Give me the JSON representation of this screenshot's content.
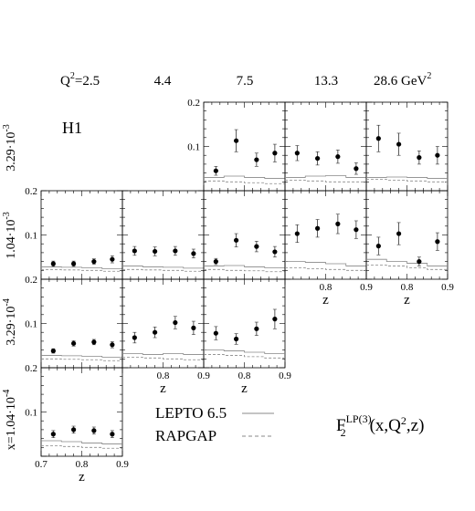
{
  "figure": {
    "experiment_label": "H1",
    "q2_labels": [
      "2.5",
      "4.4",
      "7.5",
      "13.3",
      "28.6"
    ],
    "q2_prefix_base": "Q",
    "q2_prefix_exp": "2",
    "q2_prefix_eq": "=",
    "q2_unit_base": " GeV",
    "q2_unit_exp": "2",
    "x_label_prefix": "x=",
    "x_labels": [
      {
        "mantissa": "3.29·10",
        "exp": "-3"
      },
      {
        "mantissa": "1.04·10",
        "exp": "-3"
      },
      {
        "mantissa": "3.29·10",
        "exp": "-4"
      },
      {
        "mantissa": "1.04·10",
        "exp": "-4"
      }
    ],
    "z_axis_label": "z",
    "z_tick_labels": [
      "0.7",
      "0.8",
      "0.9"
    ],
    "y_tick_labels": [
      "0.1",
      "0.2"
    ],
    "legend": [
      {
        "label": "LEPTO 6.5",
        "style": "solid"
      },
      {
        "label": "RAPGAP",
        "style": "dashed"
      }
    ],
    "formula": {
      "F": "F",
      "sub": "2",
      "sup": "LP(3)",
      "args": "(x,Q",
      "args_exp": "2",
      "args_end": ",z)"
    }
  },
  "chart_data": {
    "type": "scatter",
    "title": "",
    "xlabel": "z",
    "ylabel": "F2^LP(3)(x,Q^2,z)",
    "xlim": [
      0.7,
      0.9
    ],
    "ylim": [
      0.0,
      0.2
    ],
    "panels": [
      {
        "row": 0,
        "col": 2,
        "x_bin": "3.29·10^-3",
        "q2": "7.5",
        "points": [
          {
            "z": 0.73,
            "y": 0.045,
            "err": 0.01
          },
          {
            "z": 0.78,
            "y": 0.113,
            "err": 0.025
          },
          {
            "z": 0.83,
            "y": 0.07,
            "err": 0.015
          },
          {
            "z": 0.875,
            "y": 0.085,
            "err": 0.02
          }
        ],
        "lepto": [
          0.03,
          0.033,
          0.03,
          0.028
        ],
        "rapgap": [
          0.022,
          0.02,
          0.018,
          0.016
        ]
      },
      {
        "row": 0,
        "col": 3,
        "x_bin": "3.29·10^-3",
        "q2": "13.3",
        "points": [
          {
            "z": 0.73,
            "y": 0.085,
            "err": 0.017
          },
          {
            "z": 0.78,
            "y": 0.073,
            "err": 0.015
          },
          {
            "z": 0.83,
            "y": 0.077,
            "err": 0.015
          },
          {
            "z": 0.875,
            "y": 0.05,
            "err": 0.013
          }
        ],
        "lepto": [
          0.03,
          0.033,
          0.034,
          0.03
        ],
        "rapgap": [
          0.024,
          0.022,
          0.02,
          0.02
        ]
      },
      {
        "row": 0,
        "col": 4,
        "x_bin": "3.29·10^-3",
        "q2": "28.6",
        "points": [
          {
            "z": 0.73,
            "y": 0.118,
            "err": 0.03
          },
          {
            "z": 0.78,
            "y": 0.105,
            "err": 0.025
          },
          {
            "z": 0.83,
            "y": 0.075,
            "err": 0.015
          },
          {
            "z": 0.875,
            "y": 0.08,
            "err": 0.02
          }
        ],
        "lepto": [
          0.03,
          0.031,
          0.03,
          0.028
        ],
        "rapgap": [
          0.026,
          0.024,
          0.022,
          0.02
        ]
      },
      {
        "row": 1,
        "col": 0,
        "x_bin": "1.04·10^-3",
        "q2": "2.5",
        "points": [
          {
            "z": 0.73,
            "y": 0.035,
            "err": 0.006
          },
          {
            "z": 0.78,
            "y": 0.035,
            "err": 0.006
          },
          {
            "z": 0.83,
            "y": 0.04,
            "err": 0.006
          },
          {
            "z": 0.875,
            "y": 0.045,
            "err": 0.008
          }
        ],
        "lepto": [
          0.028,
          0.027,
          0.026,
          0.024
        ],
        "rapgap": [
          0.022,
          0.021,
          0.02,
          0.018
        ]
      },
      {
        "row": 1,
        "col": 1,
        "x_bin": "1.04·10^-3",
        "q2": "4.4",
        "points": [
          {
            "z": 0.73,
            "y": 0.064,
            "err": 0.01
          },
          {
            "z": 0.78,
            "y": 0.063,
            "err": 0.01
          },
          {
            "z": 0.83,
            "y": 0.064,
            "err": 0.01
          },
          {
            "z": 0.875,
            "y": 0.058,
            "err": 0.01
          }
        ],
        "lepto": [
          0.03,
          0.028,
          0.027,
          0.025
        ],
        "rapgap": [
          0.022,
          0.021,
          0.02,
          0.018
        ]
      },
      {
        "row": 1,
        "col": 2,
        "x_bin": "1.04·10^-3",
        "q2": "7.5",
        "points": [
          {
            "z": 0.73,
            "y": 0.04,
            "err": 0.007
          },
          {
            "z": 0.78,
            "y": 0.088,
            "err": 0.015
          },
          {
            "z": 0.83,
            "y": 0.074,
            "err": 0.012
          },
          {
            "z": 0.875,
            "y": 0.062,
            "err": 0.012
          }
        ],
        "lepto": [
          0.03,
          0.031,
          0.028,
          0.026
        ],
        "rapgap": [
          0.022,
          0.02,
          0.019,
          0.017
        ]
      },
      {
        "row": 1,
        "col": 3,
        "x_bin": "1.04·10^-3",
        "q2": "13.3",
        "points": [
          {
            "z": 0.73,
            "y": 0.103,
            "err": 0.02
          },
          {
            "z": 0.78,
            "y": 0.115,
            "err": 0.02
          },
          {
            "z": 0.83,
            "y": 0.125,
            "err": 0.022
          },
          {
            "z": 0.875,
            "y": 0.112,
            "err": 0.02
          }
        ],
        "lepto": [
          0.04,
          0.038,
          0.035,
          0.03
        ],
        "rapgap": [
          0.026,
          0.024,
          0.022,
          0.02
        ]
      },
      {
        "row": 1,
        "col": 4,
        "x_bin": "1.04·10^-3",
        "q2": "28.6",
        "points": [
          {
            "z": 0.73,
            "y": 0.075,
            "err": 0.02
          },
          {
            "z": 0.78,
            "y": 0.103,
            "err": 0.025
          },
          {
            "z": 0.83,
            "y": 0.04,
            "err": 0.01
          },
          {
            "z": 0.875,
            "y": 0.085,
            "err": 0.02
          }
        ],
        "lepto": [
          0.045,
          0.04,
          0.036,
          0.03
        ],
        "rapgap": [
          0.032,
          0.03,
          0.026,
          0.022
        ]
      },
      {
        "row": 2,
        "col": 0,
        "x_bin": "3.29·10^-4",
        "q2": "2.5",
        "points": [
          {
            "z": 0.73,
            "y": 0.038,
            "err": 0.005
          },
          {
            "z": 0.78,
            "y": 0.055,
            "err": 0.006
          },
          {
            "z": 0.83,
            "y": 0.058,
            "err": 0.006
          },
          {
            "z": 0.875,
            "y": 0.052,
            "err": 0.007
          }
        ],
        "lepto": [
          0.028,
          0.027,
          0.026,
          0.024
        ],
        "rapgap": [
          0.02,
          0.019,
          0.018,
          0.016
        ]
      },
      {
        "row": 2,
        "col": 1,
        "x_bin": "3.29·10^-4",
        "q2": "4.4",
        "points": [
          {
            "z": 0.73,
            "y": 0.068,
            "err": 0.012
          },
          {
            "z": 0.78,
            "y": 0.08,
            "err": 0.012
          },
          {
            "z": 0.83,
            "y": 0.102,
            "err": 0.014
          },
          {
            "z": 0.875,
            "y": 0.09,
            "err": 0.015
          }
        ],
        "lepto": [
          0.032,
          0.03,
          0.032,
          0.03
        ],
        "rapgap": [
          0.024,
          0.022,
          0.02,
          0.018
        ]
      },
      {
        "row": 2,
        "col": 2,
        "x_bin": "3.29·10^-4",
        "q2": "7.5",
        "points": [
          {
            "z": 0.73,
            "y": 0.078,
            "err": 0.015
          },
          {
            "z": 0.78,
            "y": 0.065,
            "err": 0.012
          },
          {
            "z": 0.83,
            "y": 0.088,
            "err": 0.015
          },
          {
            "z": 0.875,
            "y": 0.11,
            "err": 0.022
          }
        ],
        "lepto": [
          0.04,
          0.038,
          0.035,
          0.032
        ],
        "rapgap": [
          0.03,
          0.028,
          0.025,
          0.022
        ]
      },
      {
        "row": 3,
        "col": 0,
        "x_bin": "1.04·10^-4",
        "q2": "2.5",
        "points": [
          {
            "z": 0.73,
            "y": 0.05,
            "err": 0.008
          },
          {
            "z": 0.78,
            "y": 0.06,
            "err": 0.008
          },
          {
            "z": 0.83,
            "y": 0.058,
            "err": 0.008
          },
          {
            "z": 0.875,
            "y": 0.05,
            "err": 0.008
          }
        ],
        "lepto": [
          0.035,
          0.033,
          0.03,
          0.028
        ],
        "rapgap": [
          0.024,
          0.022,
          0.02,
          0.018
        ]
      }
    ]
  }
}
